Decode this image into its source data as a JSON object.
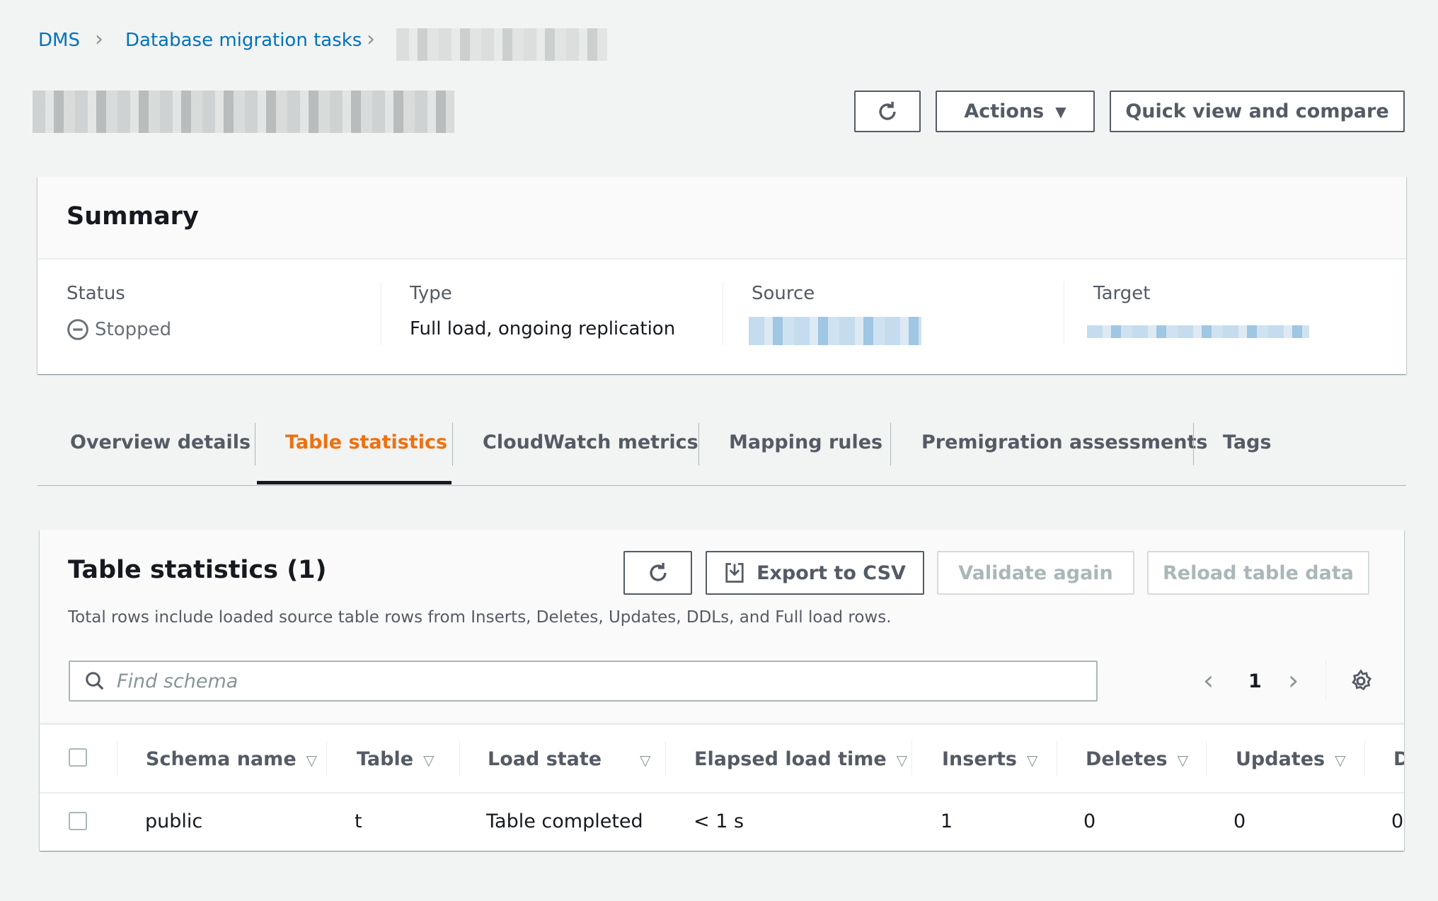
{
  "breadcrumb": {
    "items": [
      "DMS",
      "Database migration tasks"
    ]
  },
  "header": {
    "actions_label": "Actions",
    "quick_view_label": "Quick view and compare"
  },
  "summary": {
    "title": "Summary",
    "status_label": "Status",
    "status_value": "Stopped",
    "type_label": "Type",
    "type_value": "Full load, ongoing replication",
    "source_label": "Source",
    "target_label": "Target"
  },
  "tabs": [
    {
      "label": "Overview details"
    },
    {
      "label": "Table statistics",
      "active": true
    },
    {
      "label": "CloudWatch metrics"
    },
    {
      "label": "Mapping rules"
    },
    {
      "label": "Premigration assessments"
    },
    {
      "label": "Tags"
    }
  ],
  "colors": {
    "active_tab": "#ec7211",
    "link": "#0073bb"
  },
  "table_stats": {
    "title": "Table statistics (1)",
    "export_label": "Export to CSV",
    "validate_label": "Validate again",
    "reload_label": "Reload table data",
    "description": "Total rows include loaded source table rows from Inserts, Deletes, Updates, DDLs, and Full load rows.",
    "search_placeholder": "Find schema",
    "page": "1",
    "columns": [
      "Schema name",
      "Table",
      "Load state",
      "Elapsed load time",
      "Inserts",
      "Deletes",
      "Updates",
      "D"
    ],
    "rows": [
      [
        "public",
        "t",
        "Table completed",
        "< 1 s",
        "1",
        "0",
        "0",
        "0"
      ]
    ]
  }
}
